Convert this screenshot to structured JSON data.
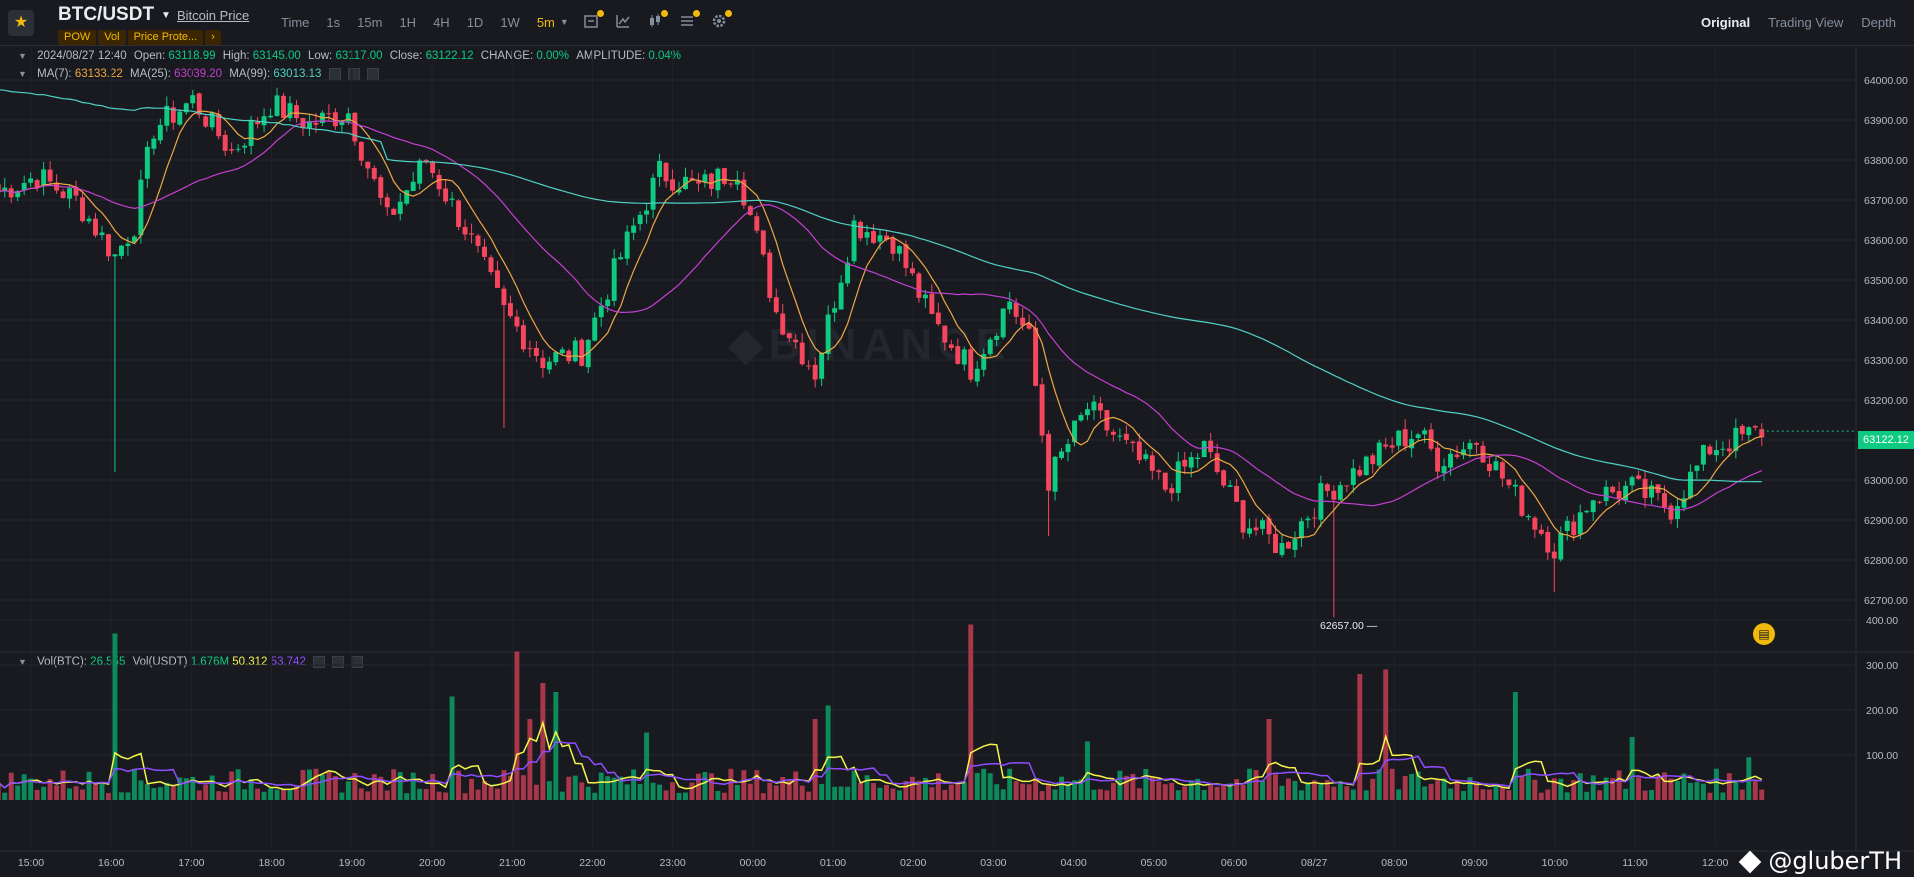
{
  "header": {
    "pair": "BTC/USDT",
    "subtitle_link": "Bitcoin Price",
    "tags": [
      "POW",
      "Vol",
      "Price Prote...",
      "›"
    ],
    "intervals": [
      "Time",
      "1s",
      "15m",
      "1H",
      "4H",
      "1D",
      "1W",
      "5m"
    ],
    "active_interval": "5m",
    "views": [
      "Original",
      "Trading View",
      "Depth"
    ],
    "active_view": "Original"
  },
  "ohlc_legend": {
    "datetime": "2024/08/27 12:40",
    "open_label": "Open:",
    "open": "63118.99",
    "high_label": "High:",
    "high": "63145.00",
    "low_label": "Low:",
    "low": "63117.00",
    "close_label": "Close:",
    "close": "63122.12",
    "change_label": "CHANGE:",
    "change": "0.00%",
    "amplitude_label": "AMPLITUDE:",
    "amplitude": "0.04%"
  },
  "ma_legend": {
    "ma7_label": "MA(7):",
    "ma7": "63133.22",
    "ma25_label": "MA(25):",
    "ma25": "63039.20",
    "ma99_label": "MA(99):",
    "ma99": "63013.13"
  },
  "vol_legend": {
    "vol_btc_label": "Vol(BTC):",
    "vol_btc": "26.555",
    "vol_usdt_label": "Vol(USDT)",
    "vol_usdt": "1.676M",
    "vol_ma1": "50.312",
    "vol_ma2": "53.742"
  },
  "last_price": "63122.12",
  "low_marker": "62657.00",
  "watermark": "@gluberTH",
  "colors": {
    "up": "#0ecb81",
    "down": "#f6465d",
    "ma7": "#f0a742",
    "ma25": "#c53fd2",
    "ma99": "#4fd1c5",
    "vol_ma1": "#f5f54a",
    "vol_ma2": "#8e4dff",
    "accent": "#f0b90b"
  },
  "chart_data": {
    "type": "candlestick",
    "price_axis_ticks": [
      "64000.00",
      "63900.00",
      "63800.00",
      "63700.00",
      "63600.00",
      "63500.00",
      "63400.00",
      "63300.00",
      "63200.00",
      "63100.00",
      "63000.00",
      "62900.00",
      "62800.00",
      "62700.00"
    ],
    "price_range": [
      62650,
      64060
    ],
    "volume_axis_ticks": [
      "400.00",
      "300.00",
      "200.00",
      "100.00"
    ],
    "volume_range": [
      0,
      420
    ],
    "time_ticks": [
      "15:00",
      "16:00",
      "17:00",
      "18:00",
      "19:00",
      "20:00",
      "21:00",
      "22:00",
      "23:00",
      "00:00",
      "01:00",
      "02:00",
      "03:00",
      "04:00",
      "05:00",
      "06:00",
      "08/27",
      "08:00",
      "09:00",
      "10:00",
      "11:00",
      "12:00"
    ],
    "close_anchors": [
      [
        "15:00",
        63720
      ],
      [
        "15:30",
        63760
      ],
      [
        "16:00",
        63700
      ],
      [
        "16:30",
        63560
      ],
      [
        "16:45",
        63640
      ],
      [
        "17:00",
        63880
      ],
      [
        "17:30",
        63950
      ],
      [
        "18:00",
        63820
      ],
      [
        "18:30",
        63940
      ],
      [
        "19:00",
        63890
      ],
      [
        "19:30",
        63920
      ],
      [
        "20:00",
        63650
      ],
      [
        "20:30",
        63800
      ],
      [
        "21:00",
        63630
      ],
      [
        "21:30",
        63420
      ],
      [
        "22:00",
        63300
      ],
      [
        "22:30",
        63320
      ],
      [
        "23:00",
        63560
      ],
      [
        "23:30",
        63770
      ],
      [
        "00:00",
        63730
      ],
      [
        "00:30",
        63780
      ],
      [
        "01:00",
        63420
      ],
      [
        "01:30",
        63270
      ],
      [
        "02:00",
        63640
      ],
      [
        "02:30",
        63600
      ],
      [
        "03:00",
        63400
      ],
      [
        "03:30",
        63280
      ],
      [
        "04:00",
        63450
      ],
      [
        "04:15",
        63350
      ],
      [
        "04:30",
        63000
      ],
      [
        "05:00",
        63180
      ],
      [
        "05:30",
        63080
      ],
      [
        "06:00",
        62980
      ],
      [
        "06:30",
        63080
      ],
      [
        "07:00",
        62900
      ],
      [
        "07:30",
        62830
      ],
      [
        "08/27 00:00",
        62960
      ],
      [
        "08:00",
        63100
      ],
      [
        "08:15",
        63120
      ],
      [
        "08:30",
        63050
      ],
      [
        "09:00",
        63100
      ],
      [
        "09:30",
        62960
      ],
      [
        "10:00",
        62830
      ],
      [
        "10:30",
        62960
      ],
      [
        "11:00",
        62980
      ],
      [
        "11:30",
        62930
      ],
      [
        "12:00",
        63080
      ],
      [
        "12:40",
        63122
      ]
    ],
    "lowest_marked": 62657.0,
    "last_close": 63122.12
  }
}
